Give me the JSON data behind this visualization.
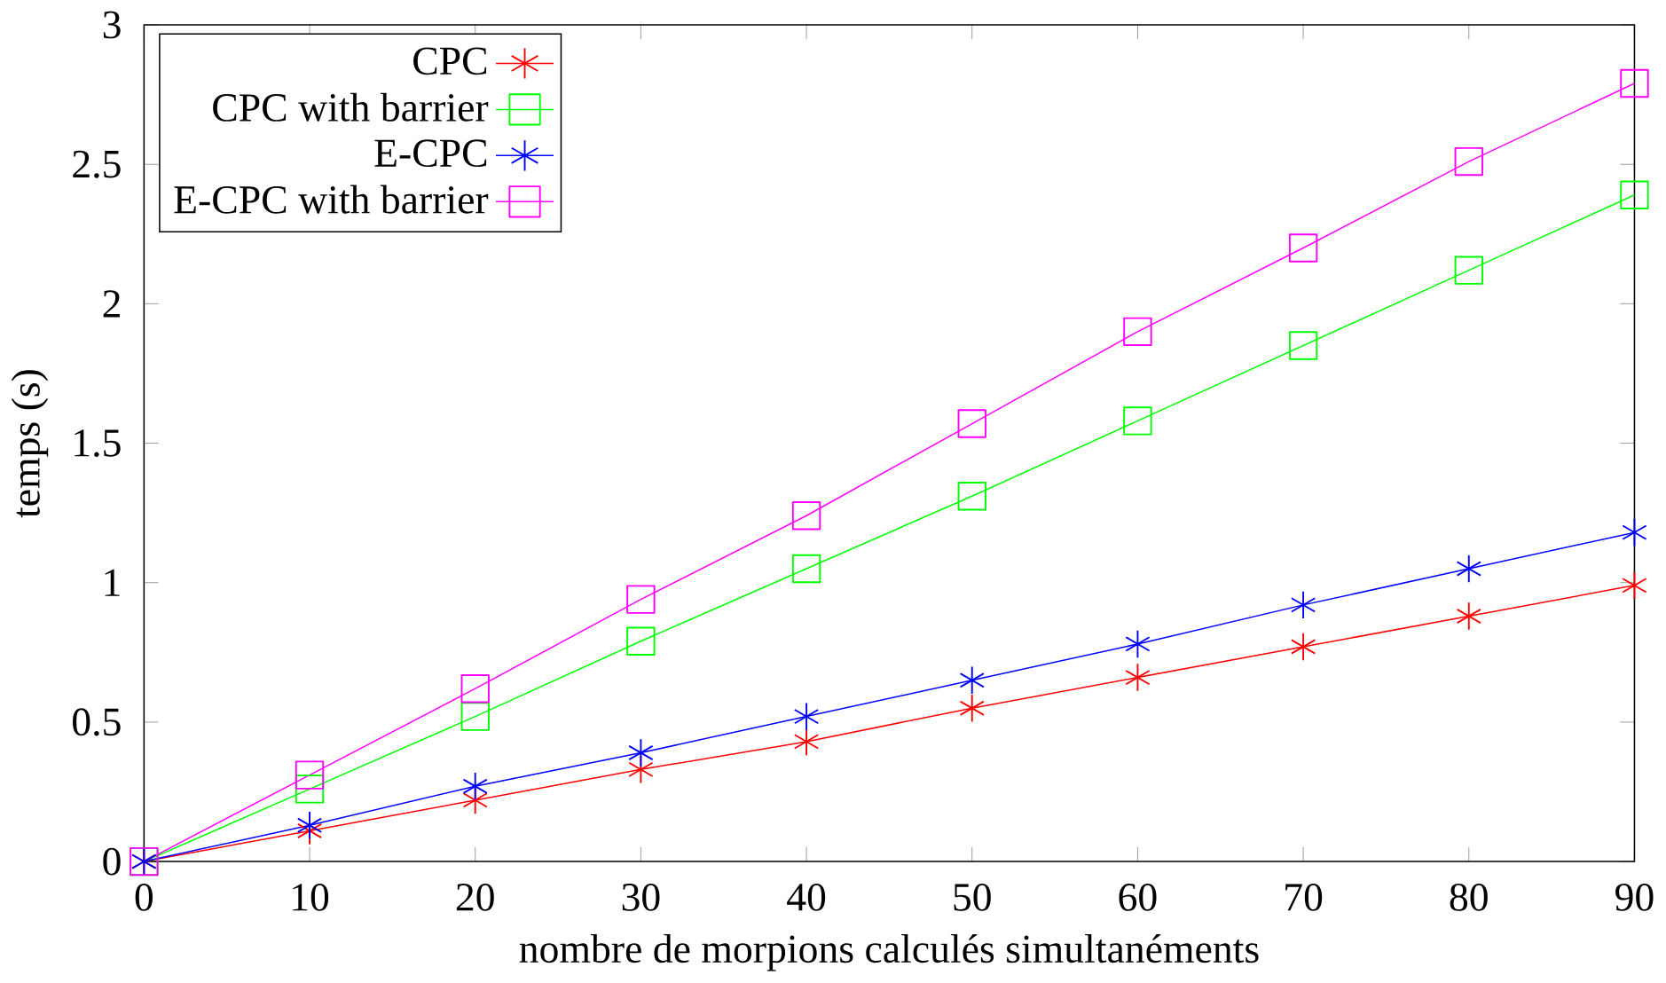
{
  "chart_data": {
    "type": "line",
    "xlabel": "nombre de morpions calculés simultanéments",
    "ylabel": "temps (s)",
    "x": [
      0,
      10,
      20,
      30,
      40,
      50,
      60,
      70,
      80,
      90
    ],
    "series": [
      {
        "name": "CPC",
        "color": "#ff0000",
        "marker": "cross",
        "values": [
          0,
          0.11,
          0.22,
          0.33,
          0.43,
          0.55,
          0.66,
          0.77,
          0.88,
          0.99
        ]
      },
      {
        "name": "CPC with barrier",
        "color": "#00ff00",
        "marker": "square",
        "values": [
          0,
          0.26,
          0.52,
          0.79,
          1.05,
          1.31,
          1.58,
          1.85,
          2.12,
          2.39
        ]
      },
      {
        "name": "E-CPC",
        "color": "#0000ff",
        "marker": "cross",
        "values": [
          0,
          0.13,
          0.27,
          0.39,
          0.52,
          0.65,
          0.78,
          0.92,
          1.05,
          1.18
        ]
      },
      {
        "name": "E-CPC with barrier",
        "color": "#ff00ff",
        "marker": "square",
        "values": [
          0,
          0.31,
          0.62,
          0.94,
          1.24,
          1.57,
          1.9,
          2.2,
          2.51,
          2.79
        ]
      }
    ],
    "xlim": [
      0,
      90
    ],
    "ylim": [
      0,
      3
    ],
    "xticks": [
      0,
      10,
      20,
      30,
      40,
      50,
      60,
      70,
      80,
      90
    ],
    "yticks": [
      0,
      0.5,
      1,
      1.5,
      2,
      2.5,
      3
    ],
    "grid": false,
    "legend": "top left",
    "line_style": "solid"
  }
}
